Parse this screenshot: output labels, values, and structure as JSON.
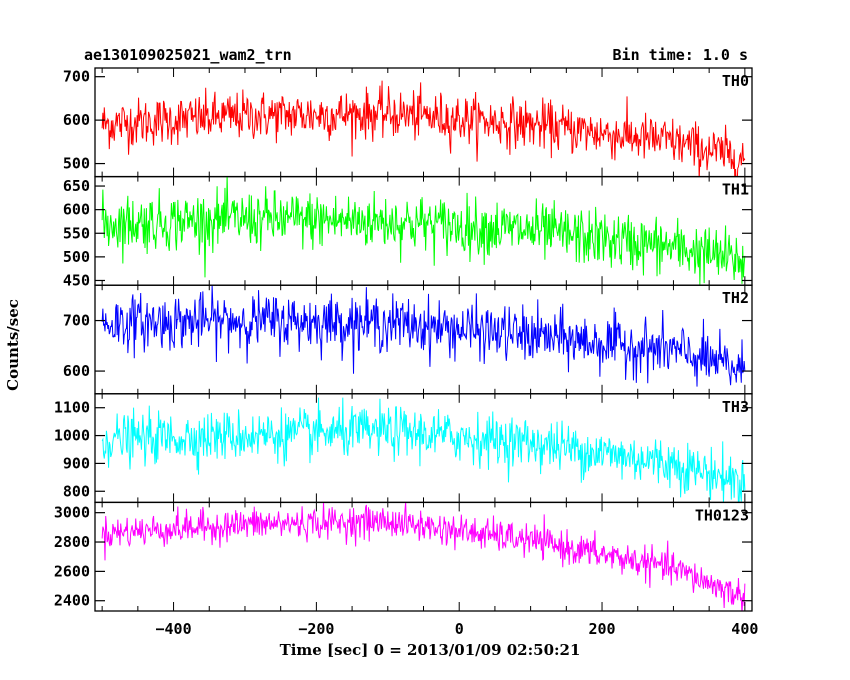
{
  "header": {
    "title": "ae130109025021_wam2_trn",
    "bin_time": "Bin time: 1.0 s"
  },
  "chart_data": {
    "type": "line",
    "xlabel": "Time [sec] 0 = 2013/01/09 02:50:21",
    "ylabel": "Counts/sec",
    "xlim": [
      -510,
      410
    ],
    "xticks": [
      -400,
      -200,
      0,
      200,
      400
    ],
    "xtick_labels": [
      "−400",
      "−200",
      "0",
      "200",
      "400"
    ],
    "panels": [
      {
        "name": "TH0",
        "color": "#ff0000",
        "ylim": [
          470,
          720
        ],
        "yticks": [
          500,
          600,
          700
        ],
        "trend_x": [
          -500,
          -300,
          -100,
          100,
          300,
          400
        ],
        "trend_y": [
          590,
          610,
          615,
          590,
          550,
          510
        ],
        "noise": 28
      },
      {
        "name": "TH1",
        "color": "#00ff00",
        "ylim": [
          440,
          670
        ],
        "yticks": [
          450,
          500,
          550,
          600,
          650
        ],
        "trend_x": [
          -500,
          -300,
          -100,
          100,
          300,
          400
        ],
        "trend_y": [
          570,
          580,
          575,
          555,
          520,
          490
        ],
        "noise": 30
      },
      {
        "name": "TH2",
        "color": "#0000ff",
        "ylim": [
          555,
          770
        ],
        "yticks": [
          600,
          700
        ],
        "trend_x": [
          -500,
          -300,
          -100,
          100,
          300,
          400
        ],
        "trend_y": [
          695,
          700,
          695,
          670,
          640,
          600
        ],
        "noise": 27
      },
      {
        "name": "TH3",
        "color": "#00ffff",
        "ylim": [
          760,
          1150
        ],
        "yticks": [
          800,
          900,
          1000,
          1100
        ],
        "trend_x": [
          -500,
          -300,
          -100,
          100,
          300,
          400
        ],
        "trend_y": [
          985,
          1000,
          1015,
          975,
          900,
          830
        ],
        "noise": 45
      },
      {
        "name": "TH0123",
        "color": "#ff00ff",
        "ylim": [
          2330,
          3070
        ],
        "yticks": [
          2400,
          2600,
          2800,
          3000
        ],
        "trend_x": [
          -500,
          -300,
          -100,
          100,
          300,
          400
        ],
        "trend_y": [
          2860,
          2920,
          2940,
          2810,
          2620,
          2420
        ],
        "noise": 55
      }
    ]
  }
}
